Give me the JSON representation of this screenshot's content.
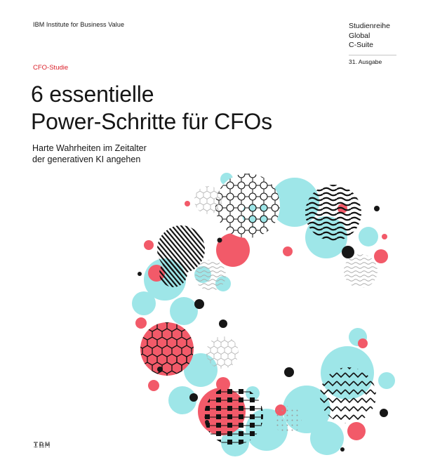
{
  "header": {
    "brand": "IBM Institute for Business Value",
    "series_lines": [
      "Studienreihe",
      "Global",
      "C-Suite"
    ],
    "issue": "31. Ausgabe"
  },
  "main": {
    "label": "CFO-Studie",
    "title_lines": [
      "6 essentielle",
      "Power-Schritte für CFOs"
    ],
    "subtitle_lines": [
      "Harte Wahrheiten im Zeitalter",
      "der generativen KI angehen"
    ]
  },
  "footer": {
    "logo_text": "IBM"
  },
  "colors": {
    "accent_red": "#da1e28",
    "cyan": "#9ee6e8",
    "red_circle": "#f25a69",
    "dark": "#161616"
  },
  "illustration": {
    "name": "circle-ring-of-patterned-dots"
  }
}
